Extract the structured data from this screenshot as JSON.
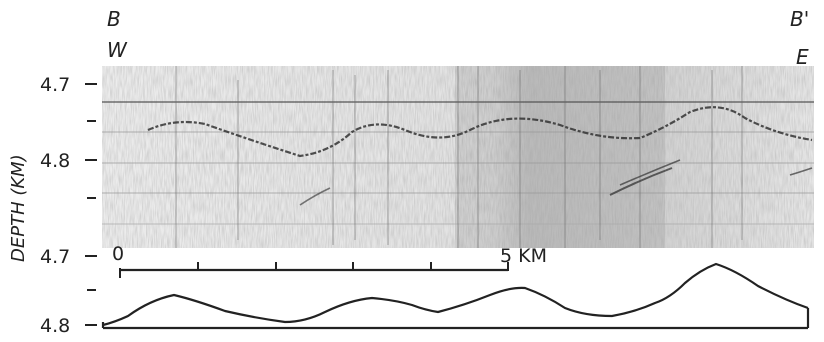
{
  "labels": {
    "left_line": "B",
    "left_dir": "W",
    "right_line": "B'",
    "right_dir": "E",
    "y_axis": "DEPTH (KM)",
    "upper_top_tick": "4.7",
    "upper_mid_tick": "4.8",
    "lower_top_tick": "4.7",
    "lower_bottom_tick": "4.8",
    "scale_start": "0",
    "scale_end": "5 KM"
  },
  "colors": {
    "ink": "#222222",
    "section_shading": "#b8b8b8",
    "section_dark": "#6a6a6a"
  },
  "scale_bar": {
    "length_km": 5,
    "divisions": 5
  }
}
